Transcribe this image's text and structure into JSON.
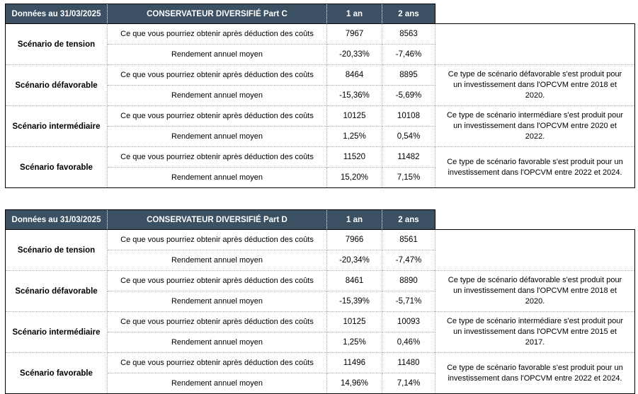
{
  "shared": {
    "row_labels": {
      "obtain": "Ce que vous pourriez obtenir après déduction des coûts",
      "rendement": "Rendement annuel moyen"
    }
  },
  "colors": {
    "header_bg": "#3C5064",
    "header_text": "#FFFFFF",
    "grid_dotted": "#ADADAD",
    "outer_border": "#000000"
  },
  "tables": [
    {
      "date_label": "Données au 31/03/2025",
      "title": "CONSERVATEUR DIVERSIFIÉ Part C",
      "columns": [
        "1 an",
        "2 ans"
      ],
      "scenarios": [
        {
          "name": "Scénario de tension",
          "obtain_1an": "7967",
          "obtain_2ans": "8563",
          "rend_1an": "-20,33%",
          "rend_2ans": "-7,46%",
          "note": ""
        },
        {
          "name": "Scénario défavorable",
          "obtain_1an": "8464",
          "obtain_2ans": "8895",
          "rend_1an": "-15,36%",
          "rend_2ans": "-5,69%",
          "note": "Ce type de scénario défavorable s'est produit pour un investissement dans l'OPCVM entre 2018 et 2020."
        },
        {
          "name": "Scénario intermédiaire",
          "obtain_1an": "10125",
          "obtain_2ans": "10108",
          "rend_1an": "1,25%",
          "rend_2ans": "0,54%",
          "note": "Ce type de scénario intermédiare s'est produit pour un investissement dans l'OPCVM entre 2020 et 2022."
        },
        {
          "name": "Scénario favorable",
          "obtain_1an": "11520",
          "obtain_2ans": "11482",
          "rend_1an": "15,20%",
          "rend_2ans": "7,15%",
          "note": "Ce type de scénario favorable s'est produit pour un investissement dans l'OPCVM entre 2022 et 2024."
        }
      ]
    },
    {
      "date_label": "Données au 31/03/2025",
      "title": "CONSERVATEUR DIVERSIFIÉ Part D",
      "columns": [
        "1 an",
        "2 ans"
      ],
      "scenarios": [
        {
          "name": "Scénario de tension",
          "obtain_1an": "7966",
          "obtain_2ans": "8561",
          "rend_1an": "-20,34%",
          "rend_2ans": "-7,47%",
          "note": ""
        },
        {
          "name": "Scénario défavorable",
          "obtain_1an": "8461",
          "obtain_2ans": "8890",
          "rend_1an": "-15,39%",
          "rend_2ans": "-5,71%",
          "note": "Ce type de scénario défavorable s'est produit pour un investissement dans l'OPCVM entre 2018 et 2020."
        },
        {
          "name": "Scénario intermédiaire",
          "obtain_1an": "10125",
          "obtain_2ans": "10093",
          "rend_1an": "1,25%",
          "rend_2ans": "0,46%",
          "note": "Ce type de scénario intermédiare s'est produit pour un investissement dans l'OPCVM entre 2015 et 2017."
        },
        {
          "name": "Scénario favorable",
          "obtain_1an": "11496",
          "obtain_2ans": "11480",
          "rend_1an": "14,96%",
          "rend_2ans": "7,14%",
          "note": "Ce type de scénario favorable s'est produit pour un investissement dans l'OPCVM entre 2022 et 2024."
        }
      ]
    }
  ]
}
